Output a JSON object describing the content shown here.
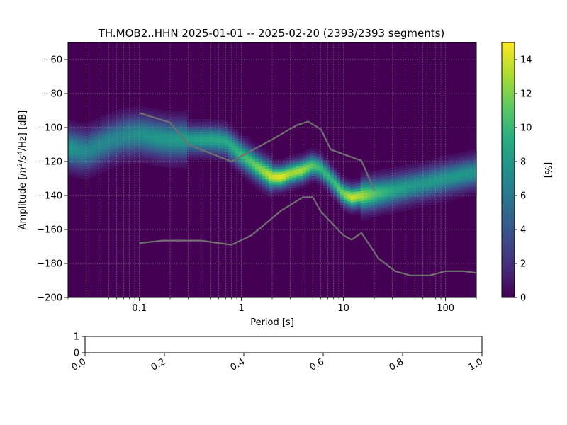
{
  "chart_data": [
    {
      "type": "heatmap",
      "title": "TH.MOB2..HHN   2025-01-01 -- 2025-02-20  (2393/2393 segments)",
      "xlabel": "Period [s]",
      "ylabel_parts": {
        "pre": "Amplitude [",
        "m": "m",
        "m_exp": "2",
        "slash1": "/",
        "s": "s",
        "s_exp": "4",
        "post": "/Hz] [dB]"
      },
      "x_scale": "log",
      "xlim": [
        0.02,
        200
      ],
      "ylim": [
        -200,
        -50
      ],
      "x_ticks": [
        0.1,
        1,
        10,
        100
      ],
      "x_tick_labels": [
        "0.1",
        "1",
        "10",
        "100"
      ],
      "y_ticks": [
        -200,
        -180,
        -160,
        -140,
        -120,
        -100,
        -80,
        -60
      ],
      "y_tick_labels": [
        "−200",
        "−180",
        "−160",
        "−140",
        "−120",
        "−100",
        "−80",
        "−60"
      ],
      "grid": true,
      "colorbar": {
        "label": "[%]",
        "range": [
          0,
          15
        ],
        "ticks": [
          0,
          2,
          4,
          6,
          8,
          10,
          12,
          14
        ],
        "tick_labels": [
          "0",
          "2",
          "4",
          "6",
          "8",
          "10",
          "12",
          "14"
        ],
        "colormap": "viridis"
      },
      "density_ridge": {
        "period": [
          0.02,
          0.03,
          0.05,
          0.07,
          0.1,
          0.15,
          0.2,
          0.3,
          0.5,
          0.7,
          1.0,
          1.5,
          2.0,
          2.5,
          3.0,
          4.0,
          5.0,
          6.0,
          8.0,
          10.0,
          12.0,
          15.0,
          20.0,
          30.0,
          50.0,
          100.0,
          200.0
        ],
        "amplitude_db": [
          -112,
          -114,
          -108,
          -105,
          -104,
          -106,
          -107,
          -107,
          -107,
          -108,
          -116,
          -124,
          -129,
          -129,
          -127,
          -125,
          -122,
          -124,
          -132,
          -139,
          -141,
          -140,
          -139,
          -137,
          -134,
          -130,
          -126
        ],
        "peak_percent": [
          8,
          7,
          7,
          7,
          7.5,
          8,
          8,
          8.5,
          9,
          9,
          10,
          12,
          14,
          14.5,
          13,
          13,
          11,
          10,
          10,
          12,
          14,
          13,
          11,
          9,
          8,
          8,
          8
        ]
      },
      "series": [
        {
          "name": "",
          "x": [
            0.1,
            0.2,
            0.3,
            0.8,
            2.0,
            3.5,
            4.5,
            6.0,
            7.5,
            15.0,
            20.0
          ],
          "y": [
            -91.5,
            -97,
            -110,
            -120,
            -107,
            -98.5,
            -96.5,
            -101,
            -113,
            -119.5,
            -137
          ]
        },
        {
          "name": "",
          "x": [
            0.1,
            0.17,
            0.4,
            0.8,
            1.25,
            2.5,
            4.0,
            5.0,
            6.0,
            10.0,
            12.0,
            15.0,
            22.0,
            32.0,
            45.0,
            70.0,
            100.0,
            150.0,
            200.0
          ],
          "y": [
            -168,
            -166.5,
            -166.5,
            -169,
            -163.5,
            -148.5,
            -141,
            -141,
            -149.5,
            -163.5,
            -166,
            -162,
            -177,
            -184.5,
            -187,
            -187,
            -184.5,
            -184.5,
            -185.5
          ]
        }
      ]
    },
    {
      "type": "line",
      "title": "",
      "xlim": [
        0,
        1
      ],
      "ylim": [
        0,
        1
      ],
      "x_tick_labels": [
        "0.0",
        "0.2",
        "0.4",
        "0.6",
        "0.8",
        "1.0"
      ],
      "y_tick_labels": [
        "0",
        "1"
      ],
      "series": []
    }
  ]
}
